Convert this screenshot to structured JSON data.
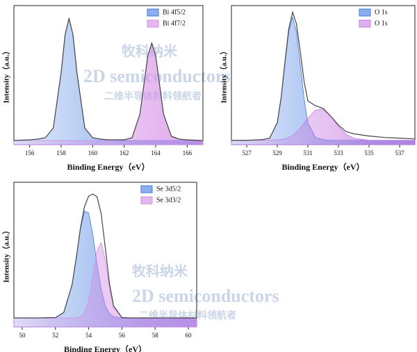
{
  "chart_data": [
    {
      "type": "area",
      "xlabel": "Binding Energy（eV）",
      "ylabel": "Intensity（a.u.）",
      "legend": "upper right",
      "x": [
        155,
        156,
        156.5,
        157,
        157.5,
        158,
        158.25,
        158.5,
        158.75,
        159,
        159.5,
        160,
        160.5,
        161,
        162,
        162.5,
        163,
        163.25,
        163.5,
        163.75,
        164,
        164.25,
        164.5,
        165,
        165.5,
        166,
        167
      ],
      "xlim": [
        155,
        167
      ],
      "xticks": [
        156,
        158,
        160,
        162,
        164,
        166
      ],
      "ylim": [
        0,
        100
      ],
      "series": [
        {
          "name": "Bi 4f5/2",
          "color": "#3f78e0",
          "values": [
            3,
            3.5,
            4,
            5,
            12,
            52,
            79,
            91,
            79,
            52,
            12,
            5,
            4,
            3.5,
            3,
            3,
            3,
            3,
            3,
            3,
            3,
            3,
            3,
            3,
            3,
            3,
            3
          ]
        },
        {
          "name": "Bi 4f7/2",
          "color": "#d48ae6",
          "values": [
            3,
            3,
            3,
            3,
            3,
            3,
            3,
            3,
            3,
            3,
            3,
            3,
            3,
            3,
            3.5,
            5,
            22,
            43,
            64,
            73,
            64,
            43,
            22,
            6,
            4,
            3.5,
            3
          ]
        }
      ],
      "envelope": [
        3,
        3.5,
        4,
        5,
        12,
        52,
        79,
        91,
        79,
        52,
        12,
        5,
        4,
        3.5,
        3.5,
        5,
        22,
        43,
        64,
        73,
        64,
        43,
        22,
        6,
        4,
        3.5,
        3
      ]
    },
    {
      "type": "area",
      "xlabel": "Binding Energy（eV）",
      "ylabel": "Intensity（a.u.）",
      "legend": "upper right",
      "x": [
        526,
        527,
        528,
        528.5,
        529,
        529.25,
        529.5,
        529.75,
        530,
        530.25,
        530.5,
        530.75,
        531,
        531.5,
        532,
        532.5,
        533,
        533.5,
        534,
        535,
        536,
        537,
        538
      ],
      "xlim": [
        526,
        538
      ],
      "xticks": [
        527,
        529,
        531,
        533,
        535,
        537
      ],
      "ylim": [
        0,
        96
      ],
      "series": [
        {
          "name": "O 1s",
          "color": "#3f78e0",
          "values": [
            3,
            3,
            3.5,
            4.5,
            15,
            32,
            56,
            78,
            88,
            78,
            56,
            32,
            15,
            5,
            3.5,
            3,
            3,
            3,
            3,
            3,
            3,
            3,
            3
          ]
        },
        {
          "name": "O 1s",
          "color": "#c77ae0",
          "values": [
            3,
            3,
            3,
            3,
            3.3,
            3.5,
            4,
            5,
            6.4,
            8.5,
            11.4,
            14.7,
            18.2,
            23.9,
            24.5,
            19.6,
            12.7,
            7.2,
            4.4,
            3,
            3,
            3,
            3
          ]
        }
      ],
      "envelope": [
        3,
        3,
        3.5,
        4.5,
        15.3,
        32.5,
        57,
        80,
        91.4,
        83.5,
        64.4,
        43.7,
        30.2,
        26.9,
        25,
        19.6,
        13.5,
        9,
        7.5,
        6,
        5,
        4.5,
        4
      ]
    },
    {
      "type": "area",
      "xlabel": "Binding Energy（eV）",
      "ylabel": "Intensity（a.u.）",
      "legend": "upper right",
      "x": [
        49.5,
        50,
        51,
        52,
        52.5,
        53,
        53.25,
        53.5,
        53.75,
        54,
        54.25,
        54.5,
        54.75,
        55,
        55.25,
        55.5,
        56,
        56.5,
        57,
        58,
        59,
        60,
        60.5
      ],
      "xlim": [
        49.5,
        60.5
      ],
      "xticks": [
        50,
        52,
        54,
        56,
        58,
        60
      ],
      "ylim": [
        0,
        80
      ],
      "series": [
        {
          "name": "Se 3d5/2",
          "color": "#3f78e0",
          "values": [
            5,
            5,
            5,
            5.2,
            8,
            23.3,
            38,
            54,
            64,
            63,
            51,
            35,
            21,
            11.8,
            7.4,
            5.7,
            5,
            5,
            5,
            5,
            5,
            5,
            5
          ]
        },
        {
          "name": "Se 3d3/2",
          "color": "#d48ae6",
          "values": [
            5,
            5,
            5,
            5,
            5,
            5,
            5,
            5.5,
            7.6,
            14.3,
            27.5,
            42,
            46.7,
            37,
            21.6,
            10.9,
            5.2,
            5,
            5,
            5,
            5,
            5,
            5
          ]
        }
      ],
      "envelope": [
        5,
        5,
        5,
        5.2,
        8,
        23.3,
        38,
        54.5,
        66.6,
        72.3,
        73.5,
        72,
        62.7,
        43.8,
        24,
        11.6,
        5.2,
        5,
        5,
        5,
        5,
        5,
        5
      ]
    }
  ],
  "watermark": {
    "brand": "牧科纳米",
    "name": "2D semiconductors",
    "slogan": "二维半导体材料领航者"
  }
}
